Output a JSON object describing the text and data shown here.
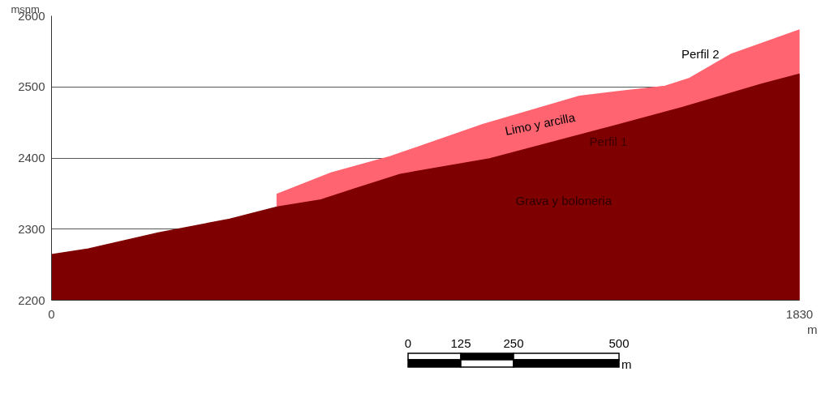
{
  "chart_data": {
    "type": "area",
    "ylabel": "msnm",
    "xlabel": "m",
    "xlim": [
      0,
      1830
    ],
    "xticks": [
      0,
      1830
    ],
    "ylim": [
      2200,
      2600
    ],
    "yticks": [
      2200,
      2300,
      2400,
      2500,
      2600
    ],
    "grid": "y",
    "series": [
      {
        "name": "Perfil 2",
        "color": "#ff6470",
        "x": [
          552,
          552,
          684,
          829,
          1055,
          1292,
          1501,
          1561,
          1663,
          1830
        ],
        "values": [
          2331,
          2349,
          2379,
          2402,
          2447,
          2487,
          2501,
          2512,
          2546,
          2580
        ]
      },
      {
        "name": "Perfil 1",
        "color": "#7f0000",
        "x": [
          0,
          90,
          263,
          436,
          552,
          659,
          744,
          853,
          1072,
          1336,
          1543,
          1738,
          1830
        ],
        "values": [
          2264,
          2272,
          2295,
          2314,
          2331,
          2341,
          2357,
          2377,
          2399,
          2439,
          2471,
          2504,
          2518
        ]
      }
    ],
    "annotations": [
      "Limo y arcilla",
      "Grava y boloneria",
      "0",
      "125",
      "250",
      "500",
      "m"
    ]
  }
}
